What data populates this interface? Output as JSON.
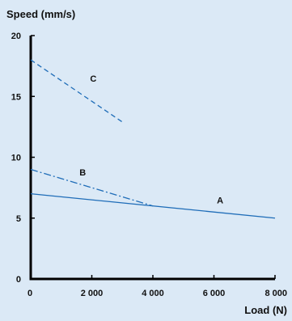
{
  "chart_data": {
    "type": "line",
    "title": "",
    "xlabel": "Load (N)",
    "ylabel": "Speed (mm/s)",
    "xlim": [
      0,
      8000
    ],
    "ylim": [
      0,
      20
    ],
    "x_ticks": [
      0,
      2000,
      4000,
      6000,
      8000
    ],
    "x_tick_labels": [
      "0",
      "2 000",
      "4 000",
      "6 000",
      "8 000"
    ],
    "y_ticks": [
      0,
      5,
      10,
      15,
      20
    ],
    "y_tick_labels": [
      "0",
      "5",
      "10",
      "15",
      "20"
    ],
    "grid": false,
    "legend": "none",
    "series": [
      {
        "label": "A",
        "style": "solid",
        "x": [
          0,
          8000
        ],
        "y": [
          7,
          5
        ]
      },
      {
        "label": "B",
        "style": "dash-dot",
        "x": [
          0,
          4000
        ],
        "y": [
          9,
          6
        ]
      },
      {
        "label": "C",
        "style": "dashed",
        "x": [
          0,
          3000
        ],
        "y": [
          18,
          12.9
        ]
      }
    ],
    "colors": {
      "background": "#dbe9f6",
      "line": "#1f6db8",
      "axis": "#000000"
    }
  }
}
